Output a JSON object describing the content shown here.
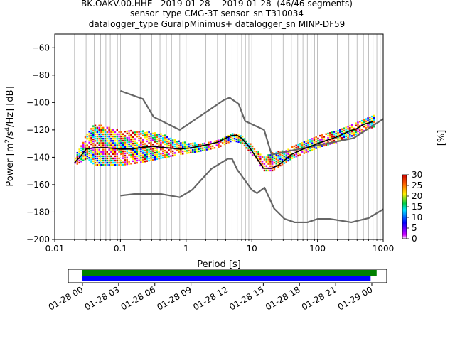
{
  "header": {
    "title_line1": "BK.OAKV.00.HHE   2019-01-28 -- 2019-01-28  (46/46 segments)",
    "title_line2": "sensor_type CMG-3T sensor_sn T310034",
    "title_line3": "datalogger_type GuralpMinimus+ datalogger_sn MINP-DF59"
  },
  "chart_data": [
    {
      "type": "heatmap",
      "subtype": "probabilistic power spectral density",
      "xlabel": "Period [s]",
      "ylabel": "Power [m²/s⁴/Hz] [dB]",
      "xscale": "log",
      "xlim": [
        0.01,
        1000
      ],
      "ylim": [
        -200,
        -50
      ],
      "x_tick_labels": [
        "0.01",
        "0.1",
        "1",
        "10",
        "100",
        "1000"
      ],
      "y_ticks": [
        -60,
        -80,
        -100,
        -120,
        -140,
        -160,
        -180,
        -200
      ],
      "grid": "vertical",
      "mean_curve": {
        "color": "#000000",
        "points": [
          [
            0.02,
            -144
          ],
          [
            0.025,
            -139
          ],
          [
            0.03,
            -134
          ],
          [
            0.04,
            -133
          ],
          [
            0.06,
            -133
          ],
          [
            0.1,
            -134
          ],
          [
            0.15,
            -134
          ],
          [
            0.2,
            -133
          ],
          [
            0.3,
            -132
          ],
          [
            0.5,
            -133
          ],
          [
            0.8,
            -134
          ],
          [
            1.2,
            -133
          ],
          [
            2,
            -131
          ],
          [
            3,
            -129
          ],
          [
            4,
            -126
          ],
          [
            5,
            -124
          ],
          [
            6,
            -124
          ],
          [
            7,
            -126
          ],
          [
            9,
            -132
          ],
          [
            12,
            -141
          ],
          [
            15,
            -148
          ],
          [
            20,
            -148
          ],
          [
            25,
            -146
          ],
          [
            30,
            -143
          ],
          [
            40,
            -138
          ],
          [
            60,
            -134
          ],
          [
            80,
            -132
          ],
          [
            100,
            -130
          ],
          [
            150,
            -127
          ],
          [
            200,
            -125
          ],
          [
            300,
            -121
          ],
          [
            400,
            -119
          ],
          [
            500,
            -116
          ],
          [
            700,
            -114
          ]
        ]
      },
      "density_band": {
        "points": [
          [
            0.02,
            -145,
            -139
          ],
          [
            0.03,
            -140,
            -122
          ],
          [
            0.04,
            -145,
            -115
          ],
          [
            0.1,
            -145,
            -120
          ],
          [
            0.2,
            -143,
            -120
          ],
          [
            0.4,
            -140,
            -122
          ],
          [
            0.8,
            -137,
            -128
          ],
          [
            1.5,
            -135,
            -129
          ],
          [
            3,
            -132,
            -127
          ],
          [
            5,
            -127,
            -122
          ],
          [
            7,
            -129,
            -124
          ],
          [
            10,
            -138,
            -131
          ],
          [
            15,
            -149,
            -139
          ],
          [
            20,
            -149,
            -136
          ],
          [
            40,
            -140,
            -132
          ],
          [
            100,
            -132,
            -124
          ],
          [
            200,
            -128,
            -120
          ],
          [
            400,
            -122,
            -114
          ],
          [
            700,
            -117,
            -109
          ]
        ]
      },
      "noise_models": {
        "color": "#666666",
        "high": [
          [
            0.1,
            -91.5
          ],
          [
            0.22,
            -97.4
          ],
          [
            0.32,
            -110.5
          ],
          [
            0.8,
            -120
          ],
          [
            3.8,
            -98
          ],
          [
            4.6,
            -96.5
          ],
          [
            6.3,
            -101
          ],
          [
            7.9,
            -113.5
          ],
          [
            15.4,
            -120
          ],
          [
            20,
            -138
          ],
          [
            354.8,
            -126
          ],
          [
            1000,
            -112
          ]
        ],
        "low": [
          [
            0.1,
            -168
          ],
          [
            0.17,
            -166.7
          ],
          [
            0.4,
            -166.7
          ],
          [
            0.8,
            -169.2
          ],
          [
            1.24,
            -163.7
          ],
          [
            2.4,
            -148.6
          ],
          [
            4.3,
            -141.1
          ],
          [
            5,
            -141.1
          ],
          [
            6,
            -149
          ],
          [
            10,
            -163.8
          ],
          [
            12,
            -166.2
          ],
          [
            15.6,
            -162.1
          ],
          [
            21.9,
            -177.5
          ],
          [
            31.6,
            -185
          ],
          [
            45,
            -187.5
          ],
          [
            70,
            -187.5
          ],
          [
            101,
            -185
          ],
          [
            154,
            -185
          ],
          [
            328,
            -187.5
          ],
          [
            600,
            -184.4
          ],
          [
            1000,
            -178
          ]
        ]
      },
      "colorbar": {
        "label": "[%]",
        "range": [
          0,
          30
        ],
        "tick_labels": [
          "0",
          "5",
          "10",
          "15",
          "20",
          "25",
          "30"
        ]
      }
    },
    {
      "type": "bar",
      "subtype": "data coverage timeline",
      "x_tick_labels": [
        "01-28 00",
        "01-28 03",
        "01-28 06",
        "01-28 09",
        "01-28 12",
        "01-28 15",
        "01-28 18",
        "01-28 21",
        "01-29 00"
      ],
      "bars": [
        {
          "start_hour": 0,
          "end_hour": 24.4,
          "color": "#008000"
        },
        {
          "start_hour": 0,
          "end_hour": 23.9,
          "color": "#0000ff"
        }
      ]
    }
  ]
}
